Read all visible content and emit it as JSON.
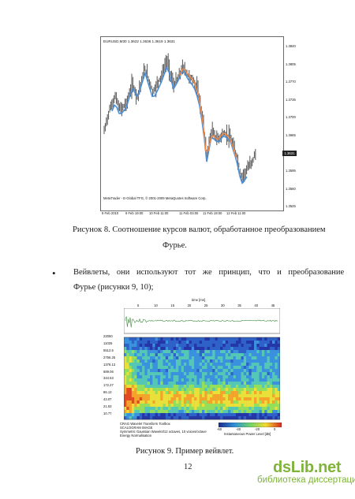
{
  "chart1": {
    "header": "EURUSD,M30  1.3622 1.3636 1.3619 1.3631",
    "yticks": [
      "1.3840",
      "1.3805",
      "1.3770",
      "1.3735",
      "1.3700",
      "1.3665",
      "1.3631",
      "1.3595",
      "1.3560",
      "1.3525"
    ],
    "xticks": [
      "9 Feb 2010",
      "9 Feb 19:00",
      "10 Feb 11:00",
      "11 Feb 03:00",
      "11 Feb 19:00",
      "12 Feb 11:00"
    ],
    "copyright": "MetaTrader - E-Global TFG, © 2001-2009 MetaQuotes Software Corp.",
    "current_price": "1.3631",
    "colors": {
      "price": "#555555",
      "fourier_blue": "#4a90d9",
      "fourier_orange": "#f08a4b"
    }
  },
  "caption8_line1": "Рисунок 8. Соотношение курсов валют, обработанное преобразованием",
  "caption8_line2": "Фурье.",
  "bullet": "•",
  "para_line1": "Вейвлеты, они используют тот же принцип, что и преобразование",
  "para_line2": "Фурье (рисунки 9, 10);",
  "wavelet": {
    "time_label": "time [ms]",
    "time_ticks": [
      "5",
      "10",
      "15",
      "20",
      "25",
      "30",
      "35",
      "40",
      "45"
    ],
    "freq_ticks": [
      "22050",
      "11025",
      "5512.5",
      "2756.25",
      "1378.13",
      "689.06",
      "344.53",
      "172.27",
      "86.13",
      "43.07",
      "21.53",
      "10.77"
    ],
    "info_line1": "CRAG Wavelet Transform Toolbox",
    "info_line2": "SCALOGRAM IMAGE",
    "info_line3": "Symmetric Gaussian Wavelet/12 octaves, 10 voices/octave",
    "info_line4": "Energy Normalisation",
    "colorbar_ticks": [
      "-60",
      "-40",
      "-20",
      "0"
    ],
    "colorbar_label": "Instantaneous Power Level [dB]"
  },
  "caption9": "Рисунок 9. Пример вейвлет.",
  "page_number": "12",
  "watermark_brand": "dsLib.net",
  "watermark_sub": "библиотека диссертаций"
}
